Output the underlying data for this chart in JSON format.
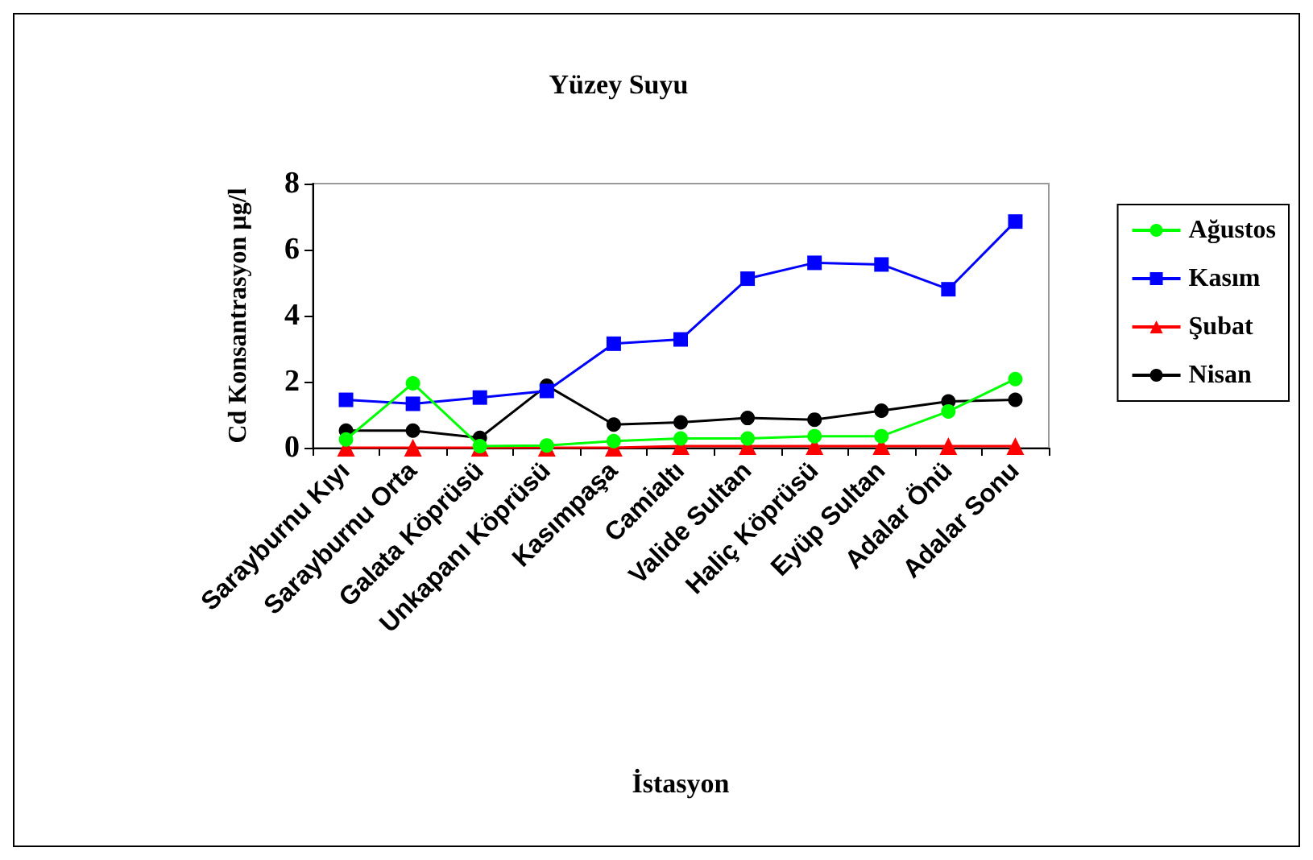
{
  "chart_data": {
    "type": "line",
    "title": "Yüzey Suyu",
    "xlabel": "İstasyon",
    "ylabel": "Cd Konsantrasyon µg/l",
    "categories": [
      "Sarayburnu Kıyı",
      "Sarayburnu Orta",
      "Galata Köprüsü",
      "Unkapanı Köprüsü",
      "Kasımpaşa",
      "Camialtı",
      "Valide Sultan",
      "Haliç Köprüsü",
      "Eyüp Sultan",
      "Adalar Önü",
      "Adalar Sonu"
    ],
    "series": [
      {
        "name": "Ağustos",
        "color": "#00ff00",
        "marker": "circle",
        "values": [
          0.25,
          1.95,
          0.05,
          0.07,
          0.2,
          0.28,
          0.28,
          0.35,
          0.35,
          1.1,
          2.08
        ]
      },
      {
        "name": "Kasım",
        "color": "#0000ff",
        "marker": "square",
        "values": [
          1.45,
          1.33,
          1.52,
          1.72,
          3.15,
          3.28,
          5.12,
          5.6,
          5.55,
          4.8,
          6.85
        ]
      },
      {
        "name": "Şubat",
        "color": "#ff0000",
        "marker": "triangle",
        "values": [
          0,
          0,
          0,
          0,
          0,
          0.05,
          0.05,
          0.05,
          0.05,
          0.05,
          0.05
        ]
      },
      {
        "name": "Nisan",
        "color": "#000000",
        "marker": "circle",
        "values": [
          0.52,
          0.52,
          0.3,
          1.88,
          0.7,
          0.77,
          0.9,
          0.85,
          1.12,
          1.4,
          1.45
        ]
      }
    ],
    "ylim": [
      0,
      8
    ],
    "yticks": [
      0,
      2,
      4,
      6,
      8
    ],
    "grid": false,
    "legend": "right"
  }
}
